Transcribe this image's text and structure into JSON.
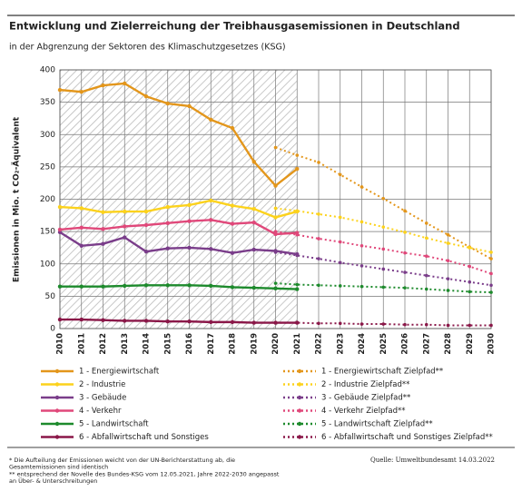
{
  "chart_data": {
    "type": "line",
    "title": "Entwicklung und Zielerreichung der Treibhausgasemissionen in Deutschland",
    "subtitle": "in der Abgrenzung der Sektoren des Klimaschutzgesetzes (KSG)",
    "y_label": "Emissionen in Mio. t CO₂-Äquivalent",
    "categories": [
      "2010",
      "2011",
      "2012",
      "2013",
      "2014",
      "2015",
      "2016",
      "2017",
      "2018",
      "2019",
      "2020",
      "2021",
      "2022",
      "2023",
      "2024",
      "2025",
      "2026",
      "2027",
      "2028",
      "2029",
      "2030"
    ],
    "ylim": [
      0,
      400
    ],
    "yticks": [
      0,
      50,
      100,
      150,
      200,
      250,
      300,
      350,
      400
    ],
    "grid": true,
    "series": [
      {
        "name": "1 - Energiewirtschaft",
        "color": "#e3961b",
        "style": "solid",
        "values": [
          369,
          366,
          376,
          379,
          359,
          348,
          344,
          323,
          310,
          258,
          221,
          247,
          null,
          null,
          null,
          null,
          null,
          null,
          null,
          null,
          null
        ]
      },
      {
        "name": "2 - Industrie",
        "color": "#fcd21c",
        "style": "solid",
        "values": [
          188,
          186,
          180,
          181,
          181,
          188,
          191,
          198,
          190,
          185,
          172,
          181,
          null,
          null,
          null,
          null,
          null,
          null,
          null,
          null,
          null
        ]
      },
      {
        "name": "3 - Gebäude",
        "color": "#7a3d8a",
        "style": "solid",
        "values": [
          149,
          128,
          131,
          141,
          119,
          124,
          125,
          123,
          117,
          122,
          120,
          115,
          null,
          null,
          null,
          null,
          null,
          null,
          null,
          null,
          null
        ]
      },
      {
        "name": "4 - Verkehr",
        "color": "#e0487a",
        "style": "solid",
        "values": [
          153,
          156,
          154,
          158,
          160,
          163,
          166,
          168,
          162,
          164,
          146,
          148,
          null,
          null,
          null,
          null,
          null,
          null,
          null,
          null,
          null
        ]
      },
      {
        "name": "5 - Landwirtschaft",
        "color": "#1d8a2c",
        "style": "solid",
        "values": [
          65,
          65,
          65,
          66,
          67,
          67,
          67,
          66,
          64,
          63,
          62,
          61,
          null,
          null,
          null,
          null,
          null,
          null,
          null,
          null,
          null
        ]
      },
      {
        "name": "6 - Abfallwirtschaft und Sonstiges",
        "color": "#8a1748",
        "style": "solid",
        "values": [
          14,
          14,
          13,
          12,
          12,
          11,
          11,
          10,
          10,
          9,
          9,
          9,
          null,
          null,
          null,
          null,
          null,
          null,
          null,
          null,
          null
        ]
      },
      {
        "name": "1 - Energiewirtschaft Zielpfad**",
        "color": "#e3961b",
        "style": "dotted",
        "values": [
          null,
          null,
          null,
          null,
          null,
          null,
          null,
          null,
          null,
          null,
          280,
          268,
          257,
          238,
          219,
          201,
          182,
          163,
          145,
          126,
          108
        ]
      },
      {
        "name": "2 - Industrie Zielpfad**",
        "color": "#fcd21c",
        "style": "dotted",
        "values": [
          null,
          null,
          null,
          null,
          null,
          null,
          null,
          null,
          null,
          null,
          186,
          182,
          177,
          172,
          165,
          157,
          149,
          140,
          132,
          125,
          118
        ]
      },
      {
        "name": "3 - Gebäude Zielpfad**",
        "color": "#7a3d8a",
        "style": "dotted",
        "values": [
          null,
          null,
          null,
          null,
          null,
          null,
          null,
          null,
          null,
          null,
          118,
          113,
          108,
          102,
          97,
          92,
          87,
          82,
          77,
          72,
          67
        ]
      },
      {
        "name": "4 - Verkehr Zielpfad**",
        "color": "#e0487a",
        "style": "dotted",
        "values": [
          null,
          null,
          null,
          null,
          null,
          null,
          null,
          null,
          null,
          null,
          150,
          145,
          139,
          134,
          128,
          123,
          117,
          112,
          105,
          96,
          85
        ]
      },
      {
        "name": "5 - Landwirtschaft Zielpfad**",
        "color": "#1d8a2c",
        "style": "dotted",
        "values": [
          null,
          null,
          null,
          null,
          null,
          null,
          null,
          null,
          null,
          null,
          70,
          68,
          67,
          66,
          65,
          64,
          63,
          61,
          59,
          57,
          56
        ]
      },
      {
        "name": "6 - Abfallwirtschaft und Sonstiges Zielpfad**",
        "color": "#8a1748",
        "style": "dotted",
        "values": [
          null,
          null,
          null,
          null,
          null,
          null,
          null,
          null,
          null,
          null,
          9,
          9,
          8,
          8,
          7,
          7,
          6,
          6,
          5,
          5,
          5
        ]
      }
    ],
    "notes": [
      "* Die Aufteilung der Emissionen weicht von der UN-Berichterstattung ab, die",
      "Gesamtemissionen sind identisch",
      "** entsprechend der Novelle des Bundes-KSG vom 12.05.2021, Jahre 2022-2030 angepasst",
      "an Über- & Unterschreitungen"
    ],
    "source": "Quelle: Umweltbundesamt  14.03.2022"
  }
}
